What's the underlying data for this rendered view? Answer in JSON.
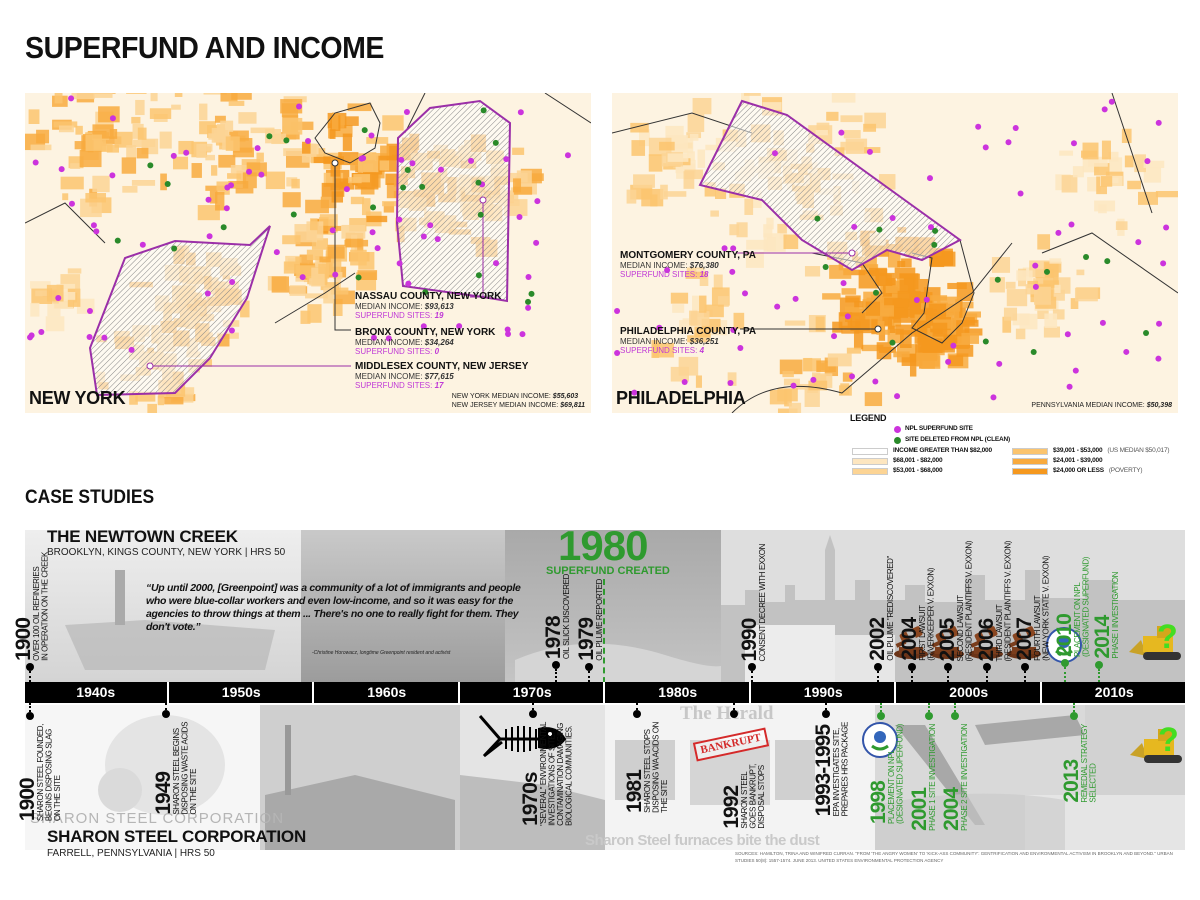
{
  "title": "SUPERFUND AND INCOME",
  "colors": {
    "npl_site": "#cc33dd",
    "deleted_site": "#2a8a2a",
    "superfund_green": "#2f9a2f",
    "county_outline": "#9b2fa8"
  },
  "maps": {
    "new_york": {
      "label": "NEW YORK",
      "counties": [
        {
          "name": "NASSAU COUNTY, NEW YORK",
          "income_label": "MEDIAN INCOME:",
          "income": "$93,613",
          "sites_label": "SUPERFUND SITES:",
          "sites": "19"
        },
        {
          "name": "BRONX COUNTY, NEW YORK",
          "income_label": "MEDIAN INCOME:",
          "income": "$34,264",
          "sites_label": "SUPERFUND SITES:",
          "sites": "0"
        },
        {
          "name": "MIDDLESEX COUNTY, NEW JERSEY",
          "income_label": "MEDIAN INCOME:",
          "income": "$77,615",
          "sites_label": "SUPERFUND SITES:",
          "sites": "17"
        }
      ],
      "state_incomes": [
        {
          "label": "NEW YORK MEDIAN INCOME:",
          "value": "$55,603"
        },
        {
          "label": "NEW JERSEY MEDIAN INCOME:",
          "value": "$69,811"
        }
      ]
    },
    "philadelphia": {
      "label": "PHILADELPHIA",
      "counties": [
        {
          "name": "MONTGOMERY COUNTY, PA",
          "income_label": "MEDIAN INCOME:",
          "income": "$76,380",
          "sites_label": "SUPERFUND SITES:",
          "sites": "18"
        },
        {
          "name": "PHILADELPHIA COUNTY, PA",
          "income_label": "MEDIAN INCOME:",
          "income": "$36,251",
          "sites_label": "SUPERFUND SITES:",
          "sites": "4"
        }
      ],
      "state_incomes": [
        {
          "label": "PENNSYLVANIA MEDIAN INCOME:",
          "value": "$50,398"
        }
      ]
    }
  },
  "legend": {
    "title": "LEGEND",
    "npl_site": "NPL SUPERFUND SITE",
    "deleted_site": "SITE DELETED FROM NPL (CLEAN)",
    "income_classes": [
      {
        "label": "INCOME GREATER THAN $82,000",
        "note": "",
        "color": "#ffffff"
      },
      {
        "label": "$68,001 - $82,000",
        "note": "",
        "color": "#fde6c0"
      },
      {
        "label": "$53,001 - $68,000",
        "note": "",
        "color": "#fcd494"
      },
      {
        "label": "$39,001 - $53,000",
        "note": "(US MEDIAN $50,017)",
        "color": "#fbc46e"
      },
      {
        "label": "$24,001 - $39,000",
        "note": "",
        "color": "#f8aa3e"
      },
      {
        "label": "$24,000 OR LESS",
        "note": "(POVERTY)",
        "color": "#f5981e"
      }
    ]
  },
  "case_studies": {
    "title": "CASE STUDIES",
    "decades": [
      "1940s",
      "1950s",
      "1960s",
      "1970s",
      "1980s",
      "1990s",
      "2000s",
      "2010s"
    ],
    "superfund_year": "1980",
    "superfund_label": "SUPERFUND CREATED",
    "newtown": {
      "name": "THE NEWTOWN CREEK",
      "location": "BROOKLYN, KINGS COUNTY, NEW YORK | HRS 50",
      "quote": "“Up until 2000, [Greenpoint] was a community of a lot of immigrants and people who were blue-collar workers and even low-income, and so it was easy for the agencies to throw things at them ... There's no one to really fight for them. They don't vote.”",
      "quote_attribution": "-Christine Horowacz, longtime Greenpoint resident and activist",
      "events": [
        {
          "year": "1900",
          "text": [
            "OVER 100 OIL REFINERIES",
            "IN OPERATION ON THE CREEK"
          ],
          "green": false
        },
        {
          "year": "1978",
          "text": [
            "OIL SLICK DISCOVERED"
          ],
          "green": false
        },
        {
          "year": "1979",
          "text": [
            "OIL PLUME REPORTED"
          ],
          "green": false
        },
        {
          "year": "1990",
          "text": [
            "CONSENT DECREE WITH EXXON"
          ],
          "green": false
        },
        {
          "year": "2002",
          "text": [
            "OIL PLUME \"REDISCOVERED\""
          ],
          "green": false
        },
        {
          "year": "2004",
          "text": [
            "FIRST LAWSUIT",
            "(RIVERKEEPER V. EXXON)"
          ],
          "green": false
        },
        {
          "year": "2005",
          "text": [
            "SECOND LAWSUIT",
            "(RESIDENT PLAINTIFFS V. EXXON)"
          ],
          "green": false
        },
        {
          "year": "2006",
          "text": [
            "THIRD LAWSUIT",
            "(RESIDENT PLAINTIFFS V. EXXON)"
          ],
          "green": false
        },
        {
          "year": "2007",
          "text": [
            "FOURTH LAWSUIT",
            "(NEW YORK STATE V. EXXON)"
          ],
          "green": false
        },
        {
          "year": "2010",
          "text": [
            "PLACEMENT ON NPL",
            "(DESIGNATED SUPERFUND)"
          ],
          "green": true
        },
        {
          "year": "2014",
          "text": [
            "PHASE I INVESTIGATION"
          ],
          "green": true
        }
      ]
    },
    "sharon": {
      "name": "SHARON STEEL CORPORATION",
      "watermark": "SHARON STEEL CORPORATION",
      "location": "FARRELL, PENNSYLVANIA | HRS 50",
      "newspaper_masthead": "The Herald",
      "newspaper_headline": "Sharon Steel furnaces bite the dust",
      "stamp": "BANKRUPT",
      "events": [
        {
          "year": "1900",
          "text": [
            "SHARON STEEL FOUNDED,",
            "BEGINS DISPOSING SLAG",
            "ON THE SITE"
          ],
          "green": false
        },
        {
          "year": "1949",
          "text": [
            "SHARON STEEL BEGINS",
            "DISPOSING WASTE ACIDS",
            "ON THE SITE"
          ],
          "green": false
        },
        {
          "year": "1970s",
          "text": [
            "\"SEVERAL\" ENVIRONMENTAL",
            "INVESTIGATIONS OF SITE.",
            "CONTAMINATION DAMAGING",
            "BIOLOGICAL COMMUNITIES."
          ],
          "green": false
        },
        {
          "year": "1981",
          "text": [
            "SHARON STEEL STOPS",
            "DISPOSING WA ACIDS ON",
            "THE SITE"
          ],
          "green": false
        },
        {
          "year": "1992",
          "text": [
            "SHARON STEEL",
            "GOES BANKRUPT,",
            "DISPOSAL STOPS"
          ],
          "green": false
        },
        {
          "year": "1993-1995",
          "text": [
            "EPA INVESTIGATES SITE,",
            "PREPARES HRS PACKAGE"
          ],
          "green": false
        },
        {
          "year": "1998",
          "text": [
            "PLACEMENT ON NPL",
            "(DESIGNATED SUPERFUND)"
          ],
          "green": true
        },
        {
          "year": "2001",
          "text": [
            "PHASE 1 SITE INVESTIGATION"
          ],
          "green": true
        },
        {
          "year": "2004",
          "text": [
            "PHASE 2 SITE INVESTIGATION"
          ],
          "green": true
        },
        {
          "year": "2013",
          "text": [
            "REMEDIAL STRATEGY",
            "SELECTED"
          ],
          "green": true
        }
      ]
    },
    "unknown_future": "?",
    "sources": "SOURCES:   HAMILTON, TRINA AND WINIFRED CURRAN. \"FROM 'THE ANGRY WOMEN' TO 'KICK-ASS COMMUNITY': GENTRIFICATION AND ENVIRONMENTAL ACTIVISM IN BROOKLYN AND BEYOND.\" URBAN STUDIES 50(8): 1557-1574. JUNE 2013. UNITED STATES ENVIRONMENTAL PROTECTION AGENCY"
  }
}
